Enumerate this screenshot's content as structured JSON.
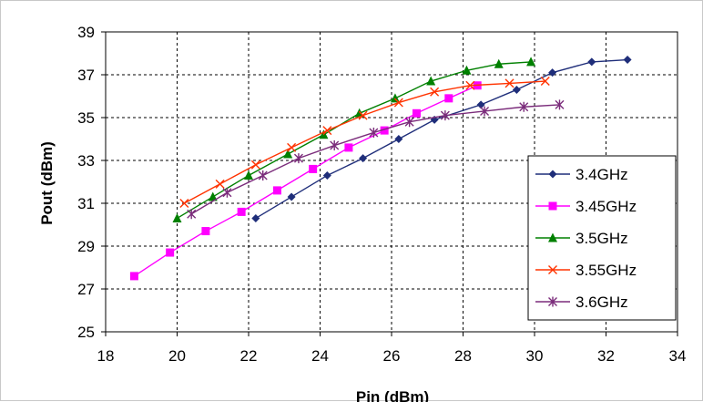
{
  "chart_data": {
    "type": "line",
    "title": "",
    "xlabel": "Pin (dBm)",
    "ylabel": "Pout (dBm)",
    "xlim": [
      18,
      34
    ],
    "ylim": [
      25,
      39
    ],
    "xticks": [
      18,
      20,
      22,
      24,
      26,
      28,
      30,
      32,
      34
    ],
    "yticks": [
      25,
      27,
      29,
      31,
      33,
      35,
      37,
      39
    ],
    "grid": "dashed",
    "legend_position": "lower-right",
    "series": [
      {
        "name": "3.4GHz",
        "color": "#1f2e7a",
        "marker": "diamond",
        "x": [
          22.2,
          23.2,
          24.2,
          25.2,
          26.2,
          27.2,
          28.5,
          29.5,
          30.5,
          31.6,
          32.6
        ],
        "y": [
          30.3,
          31.3,
          32.3,
          33.1,
          34.0,
          34.9,
          35.6,
          36.3,
          37.1,
          37.6,
          37.7
        ]
      },
      {
        "name": "3.45GHz",
        "color": "#ff00ff",
        "marker": "square",
        "x": [
          18.8,
          19.8,
          20.8,
          21.8,
          22.8,
          23.8,
          24.8,
          25.8,
          26.7,
          27.6,
          28.4
        ],
        "y": [
          27.6,
          28.7,
          29.7,
          30.6,
          31.6,
          32.6,
          33.6,
          34.4,
          35.2,
          35.9,
          36.5
        ]
      },
      {
        "name": "3.5GHz",
        "color": "#008000",
        "marker": "triangle",
        "x": [
          20.0,
          21.0,
          22.0,
          23.1,
          24.1,
          25.1,
          26.1,
          27.1,
          28.1,
          29.0,
          29.9
        ],
        "y": [
          30.3,
          31.3,
          32.3,
          33.3,
          34.2,
          35.2,
          35.9,
          36.7,
          37.2,
          37.5,
          37.6
        ]
      },
      {
        "name": "3.55GHz",
        "color": "#ff3300",
        "marker": "x",
        "x": [
          20.2,
          21.2,
          22.2,
          23.2,
          24.2,
          25.2,
          26.2,
          27.2,
          28.2,
          29.3,
          30.3
        ],
        "y": [
          31.0,
          31.9,
          32.8,
          33.6,
          34.4,
          35.1,
          35.7,
          36.2,
          36.5,
          36.6,
          36.7
        ]
      },
      {
        "name": "3.6GHz",
        "color": "#7b2c7b",
        "marker": "asterisk",
        "x": [
          20.4,
          21.4,
          22.4,
          23.4,
          24.4,
          25.5,
          26.5,
          27.5,
          28.6,
          29.7,
          30.7
        ],
        "y": [
          30.5,
          31.5,
          32.3,
          33.1,
          33.7,
          34.3,
          34.8,
          35.1,
          35.3,
          35.5,
          35.6
        ]
      }
    ]
  }
}
